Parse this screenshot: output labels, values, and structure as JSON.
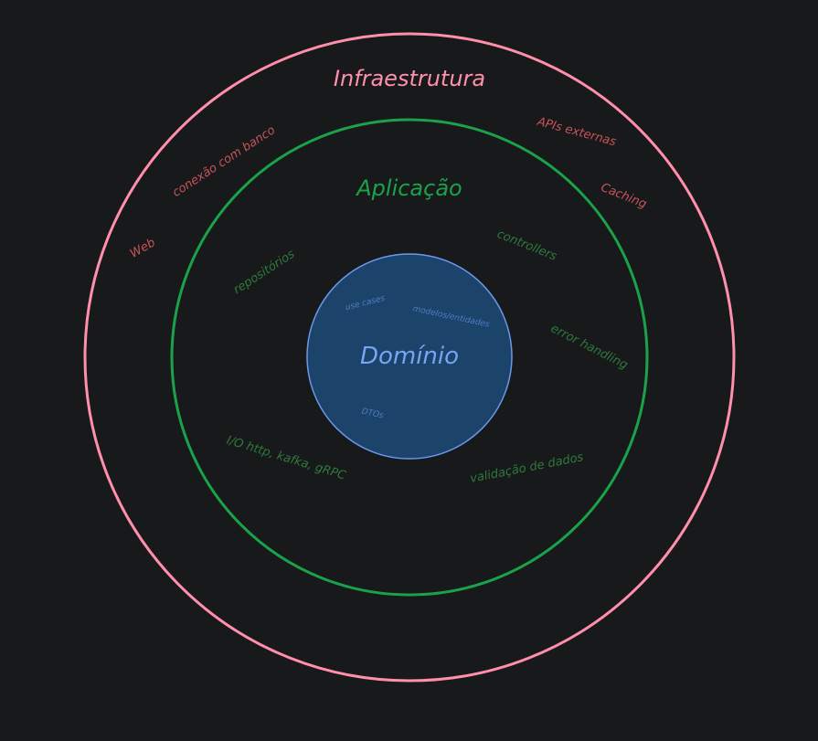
{
  "colors": {
    "background": "#18191b",
    "infra": "#ff8fab",
    "infra_label": "#c9545a",
    "app": "#1aa24a",
    "app_label": "#2d7a3d",
    "domain_fill": "#1c4369",
    "domain_stroke": "#6a98ef",
    "domain_text": "#77a4f4",
    "domain_label": "#4f7ec6"
  },
  "layers": {
    "infrastructure": {
      "title": "Infraestrutura",
      "labels": [
        "APIs externas",
        "Caching",
        "conexão com banco",
        "Web"
      ]
    },
    "application": {
      "title": "Aplicação",
      "labels": [
        "controllers",
        "repositórios",
        "error handling",
        "I/O http, kafka, gRPC",
        "validação de dados"
      ]
    },
    "domain": {
      "title": "Domínio",
      "labels": [
        "use cases",
        "modelos/entidades",
        "DTOs"
      ]
    }
  }
}
